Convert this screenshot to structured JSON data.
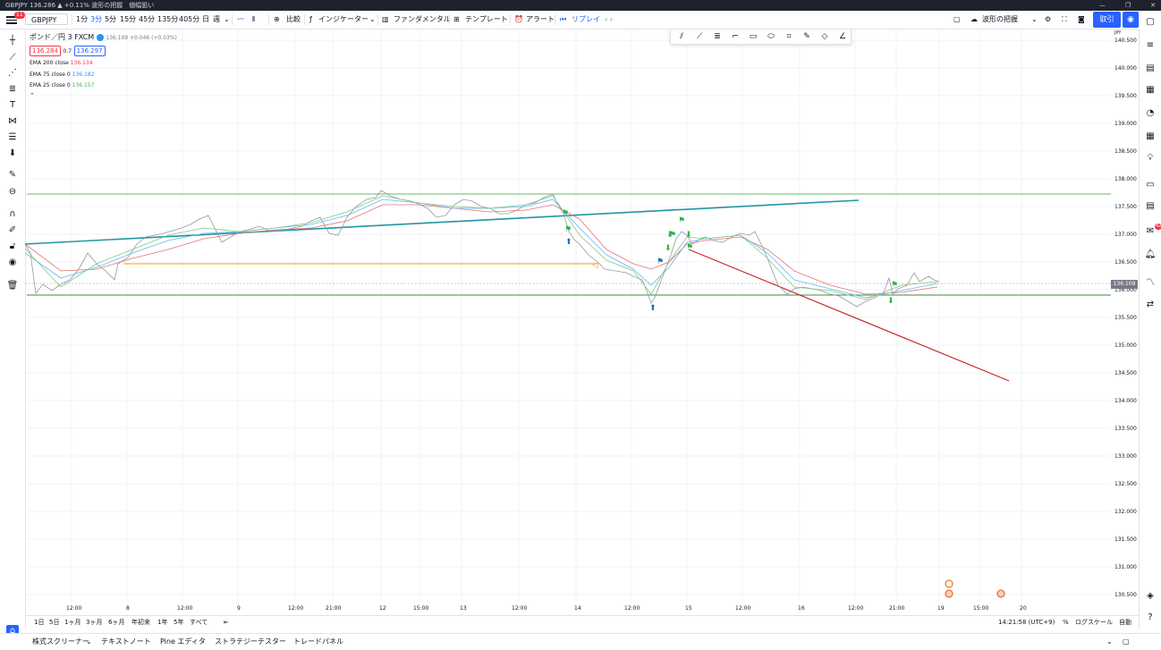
{
  "titlebar": {
    "text": "GBPJPY 136.286 ▲ +0.11% 波形の把握　値幅狙い",
    "controls": [
      "—",
      "❐",
      "✕"
    ]
  },
  "header": {
    "notif_count": "11",
    "symbol": "GBPJPY",
    "timeframes": [
      "1分",
      "3分",
      "5分",
      "15分",
      "45分",
      "135分",
      "405分",
      "日",
      "週"
    ],
    "compare": "比較",
    "indicators": "インジケーター",
    "fundamentals": "ファンダメンタル",
    "templates": "テンプレート",
    "alert": "アラート",
    "replay": "リプレイ",
    "layout_name": "波形の把握",
    "trade": "取引"
  },
  "legend": {
    "symbol_desc": "ポンド／円",
    "interval": "3",
    "exchange": "FXCM",
    "ohlc": "136.109 +0.046 (+0.03%)",
    "bid": "136.284",
    "spread": "0.7",
    "ask": "136.297",
    "ema_rows": [
      {
        "name": "EMA 200 close",
        "value": "136.134",
        "color": "#f23645"
      },
      {
        "name": "EMA 75 close 0",
        "value": "136.182",
        "color": "#2196f3"
      },
      {
        "name": "EMA 25 close 0",
        "value": "136.157",
        "color": "#4caf50"
      }
    ]
  },
  "price_axis": {
    "currency": "JPY",
    "labels": [
      "140.500",
      "140.000",
      "139.500",
      "139.000",
      "138.500",
      "138.000",
      "137.500",
      "137.000",
      "136.500",
      "136.000",
      "135.500",
      "135.000",
      "134.500",
      "134.000",
      "133.500",
      "133.000",
      "132.500",
      "132.000",
      "131.500",
      "131.000",
      "130.500"
    ],
    "current": "136.109"
  },
  "time_axis": {
    "labels": [
      "12:00",
      "8",
      "12:00",
      "9",
      "12:00",
      "21:00",
      "12",
      "15:00",
      "13",
      "12:00",
      "14",
      "12:00",
      "15",
      "12:00",
      "16",
      "12:00",
      "21:00",
      "19",
      "15:00",
      "20"
    ]
  },
  "bottom_bar": {
    "ranges": [
      "1日",
      "5日",
      "1ヶ月",
      "3ヶ月",
      "6ヶ月",
      "年初来",
      "1年",
      "5年",
      "すべて"
    ],
    "clock": "14:21:58 (UTC+9)",
    "percent": "%",
    "log": "ログスケール",
    "auto": "自動"
  },
  "tabs": [
    "株式スクリーナー",
    "テキストノート",
    "Pine エディタ",
    "ストラテジーテスター",
    "トレードパネル"
  ],
  "colors": {
    "accent": "#2962ff",
    "support": "#4caf50",
    "trendline": "#2196a3",
    "downtrend": "#c62828",
    "orange": "#ff9800"
  }
}
